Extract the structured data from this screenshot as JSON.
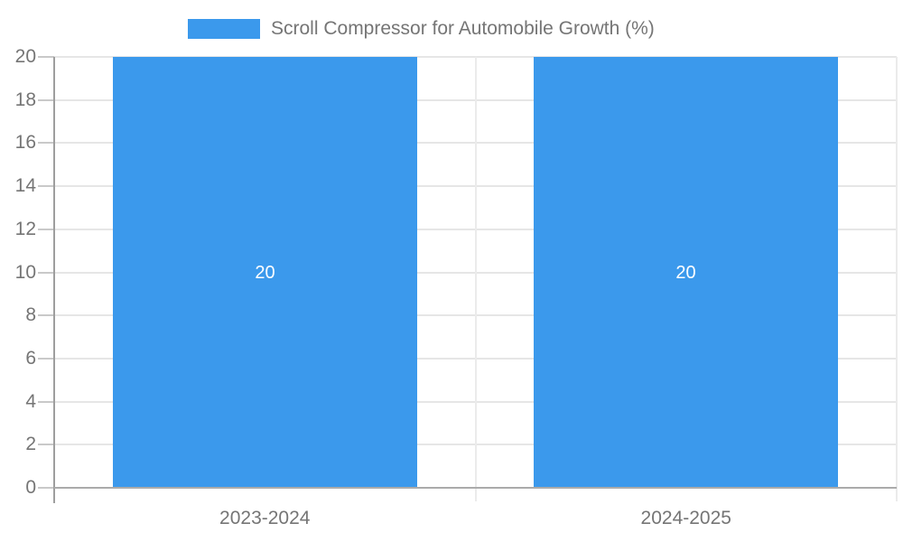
{
  "chart_data": {
    "type": "bar",
    "title": "",
    "categories": [
      "2023-2024",
      "2024-2025"
    ],
    "series": [
      {
        "name": "Scroll Compressor for Automobile Growth (%)",
        "values": [
          20,
          20
        ]
      }
    ],
    "bar_labels": [
      "20",
      "20"
    ],
    "ylabel": "",
    "xlabel": "",
    "ylim": [
      0,
      20
    ],
    "ytick_step": 2,
    "ytick_labels": [
      "0",
      "2",
      "4",
      "6",
      "8",
      "10",
      "12",
      "14",
      "16",
      "18",
      "20"
    ],
    "grid": true,
    "legend_position": "top-center",
    "colors": {
      "bar": "#3B99EC",
      "grid": "#E6E6E6",
      "divider": "#EBEBEB",
      "axis": "#9E9E9E",
      "baseline": "#ABABAB",
      "tick": "#C9C9C9",
      "text": "#757575",
      "bar_label": "#FFFFFF",
      "background": "#FFFFFF"
    }
  }
}
